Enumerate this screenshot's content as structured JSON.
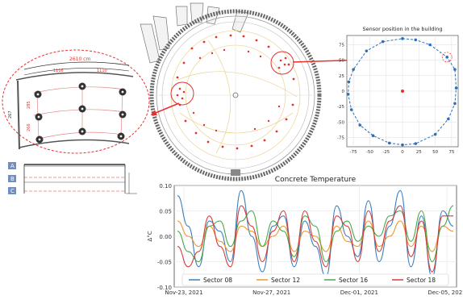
{
  "detail": {
    "dim_total": "2610 cm",
    "dim_left": "1116",
    "dim_right": "1110",
    "dim_v1": "285",
    "dim_v2": "266",
    "dim_outer": "267",
    "rows": [
      "A",
      "B",
      "C"
    ]
  },
  "colors": {
    "accent": "#e8312f",
    "sensor_blue": "#2f6fb5",
    "s08": "#3b7dbd",
    "s12": "#f0962f",
    "s16": "#4aa84a",
    "s18": "#d43c3c"
  },
  "chart_data": [
    {
      "type": "scatter",
      "title": "Sensor position in the building",
      "xlim": [
        -85,
        85
      ],
      "ylim": [
        -90,
        90
      ],
      "xticks": [
        "-75",
        "-50",
        "-25",
        "0",
        "25",
        "50",
        "75"
      ],
      "yticks": [
        "75",
        "50",
        "25",
        "0",
        "-25",
        "-50",
        "-75"
      ],
      "grid": true,
      "points": [
        [
          0,
          85
        ],
        [
          20,
          83
        ],
        [
          42,
          75
        ],
        [
          68,
          55
        ],
        [
          80,
          35
        ],
        [
          82,
          5
        ],
        [
          80,
          -20
        ],
        [
          70,
          -45
        ],
        [
          50,
          -70
        ],
        [
          20,
          -85
        ],
        [
          0,
          -87
        ],
        [
          -20,
          -84
        ],
        [
          -45,
          -72
        ],
        [
          -65,
          -55
        ],
        [
          -78,
          -30
        ],
        [
          -83,
          -5
        ],
        [
          -82,
          15
        ],
        [
          -75,
          35
        ],
        [
          -55,
          65
        ],
        [
          -30,
          80
        ],
        [
          0,
          85
        ]
      ],
      "center": [
        0,
        0
      ]
    },
    {
      "type": "line",
      "title": "Concrete Temperature",
      "ylabel": "Δ°C",
      "ylim": [
        -0.1,
        0.1
      ],
      "yticks": [
        "0.10",
        "0.05",
        "0.00",
        "-0.05",
        "-0.10"
      ],
      "xticks": [
        "Nov-23, 2021",
        "Nov-27, 2021",
        "Dec-01, 2021",
        "Dec-05, 2021"
      ],
      "legend": "bottom",
      "series": [
        {
          "name": "Sector 08",
          "values": [
            0.08,
            0.02,
            -0.06,
            0.03,
            0.01,
            -0.05,
            0.09,
            0.0,
            -0.07,
            0.02,
            0.04,
            -0.06,
            0.03,
            -0.02,
            -0.08,
            0.06,
            0.0,
            -0.04,
            0.07,
            -0.05,
            0.02,
            0.09,
            -0.06,
            0.04,
            -0.08,
            0.05,
            0.02
          ]
        },
        {
          "name": "Sector 12",
          "values": [
            0.03,
            0.0,
            -0.02,
            0.02,
            -0.01,
            -0.03,
            0.02,
            0.01,
            -0.02,
            0.0,
            0.02,
            -0.03,
            0.01,
            0.0,
            -0.03,
            0.02,
            -0.01,
            -0.02,
            0.03,
            -0.02,
            0.0,
            0.03,
            -0.02,
            0.02,
            -0.03,
            0.02,
            0.01
          ]
        },
        {
          "name": "Sector 16",
          "values": [
            0.01,
            -0.03,
            -0.05,
            0.02,
            0.03,
            -0.02,
            0.03,
            0.05,
            -0.02,
            0.03,
            0.01,
            -0.04,
            0.04,
            0.02,
            -0.05,
            0.01,
            0.03,
            -0.01,
            0.02,
            0.0,
            0.04,
            0.05,
            -0.01,
            0.05,
            -0.05,
            0.02,
            0.06
          ]
        },
        {
          "name": "Sector 18",
          "values": [
            -0.02,
            -0.06,
            -0.03,
            0.04,
            -0.02,
            -0.06,
            0.06,
            0.02,
            -0.05,
            0.01,
            0.05,
            -0.05,
            0.05,
            -0.01,
            -0.06,
            0.04,
            0.02,
            -0.05,
            0.05,
            -0.03,
            0.03,
            0.06,
            -0.04,
            0.03,
            -0.07,
            0.04,
            0.04
          ]
        }
      ]
    }
  ]
}
